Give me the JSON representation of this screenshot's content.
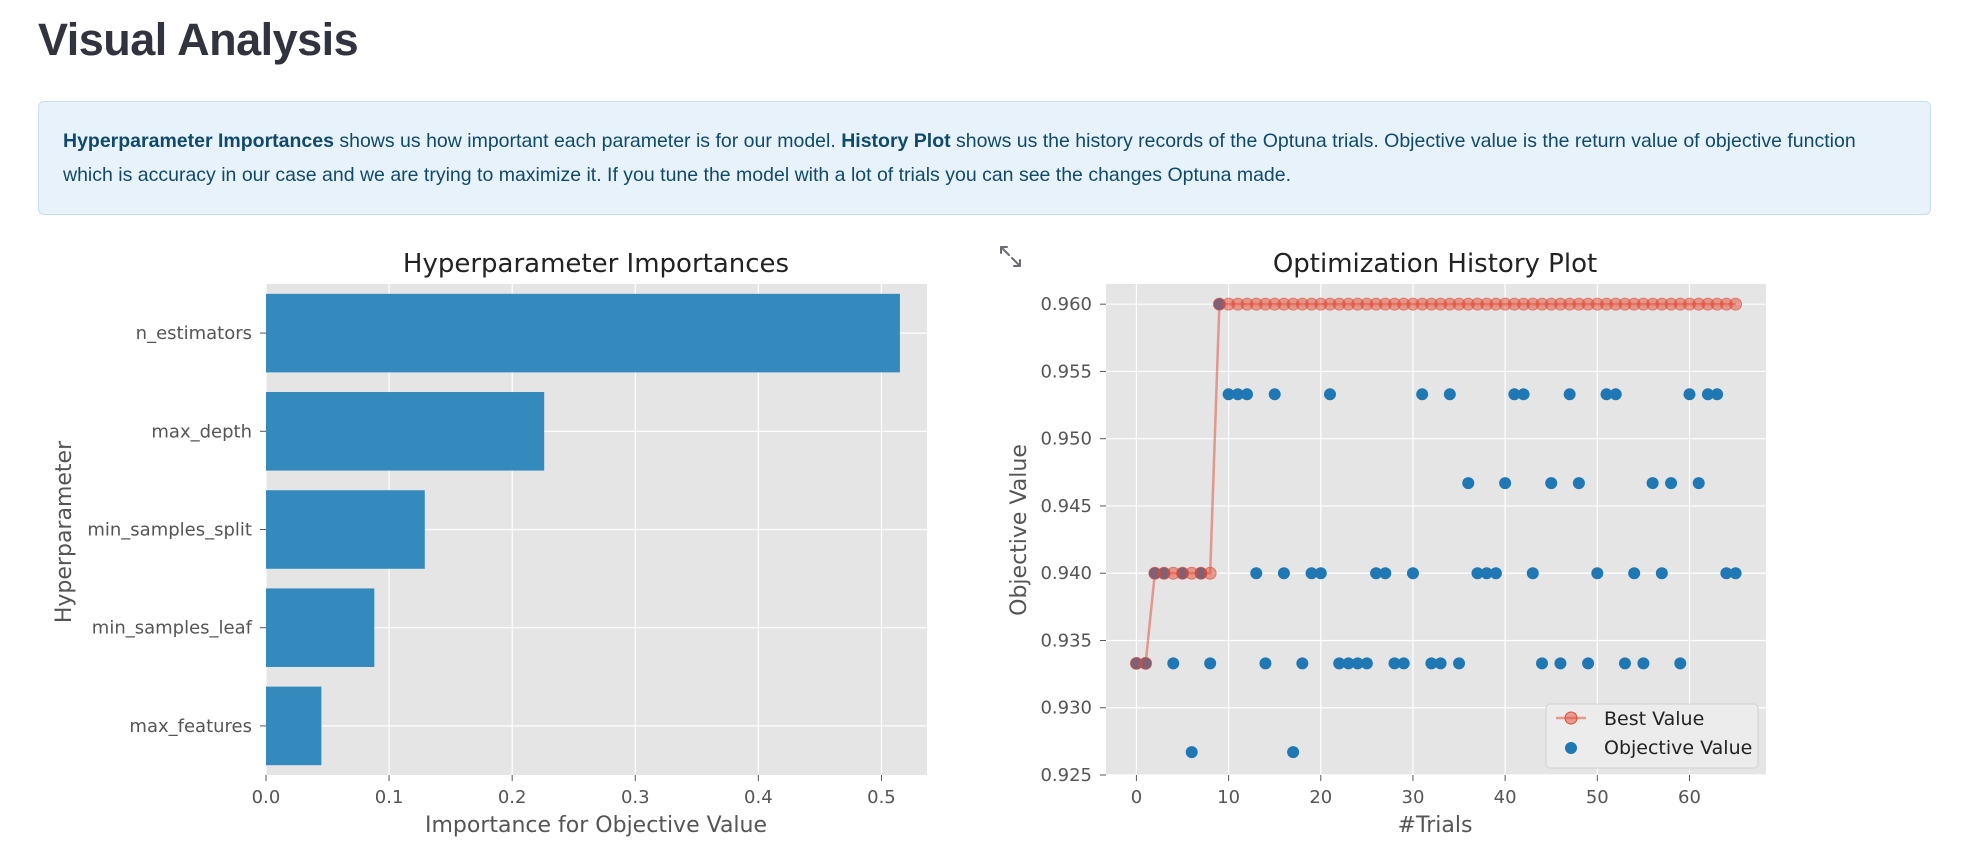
{
  "page": {
    "title": "Visual Analysis"
  },
  "info": {
    "term1": "Hyperparameter Importances",
    "text1": " shows us how important each parameter is for our model. ",
    "term2": "History Plot",
    "text2": " shows us the history records of the Optuna trials. Objective value is the return value of objective function which is accuracy in our case and we are trying to maximize it. If you tune the model with a lot of trials you can see the changes Optuna made."
  },
  "icons": {
    "expand": "expand-arrows-icon"
  },
  "colors": {
    "bar": "#348abd",
    "best_line": "#e24a33",
    "objective_dot": "#1f77b4",
    "plot_bg": "#e5e5e5",
    "info_bg": "#e8f2fb",
    "info_text": "#0f4a6c"
  },
  "chart_data": [
    {
      "type": "bar",
      "orientation": "horizontal",
      "title": "Hyperparameter Importances",
      "xlabel": "Importance for Objective Value",
      "ylabel": "Hyperparameter",
      "categories": [
        "n_estimators",
        "max_depth",
        "min_samples_split",
        "min_samples_leaf",
        "max_features"
      ],
      "values": [
        0.515,
        0.226,
        0.129,
        0.088,
        0.045
      ],
      "xlim": [
        0,
        0.537
      ],
      "xticks": [
        "0.0",
        "0.1",
        "0.2",
        "0.3",
        "0.4",
        "0.5"
      ],
      "grid": true
    },
    {
      "type": "scatter",
      "title": "Optimization History Plot",
      "xlabel": "#Trials",
      "ylabel": "Objective Value",
      "xlim": [
        -3.3,
        68.3
      ],
      "ylim": [
        0.925,
        0.9615
      ],
      "xticks": [
        "0",
        "10",
        "20",
        "30",
        "40",
        "50",
        "60"
      ],
      "yticks": [
        "0.925",
        "0.930",
        "0.935",
        "0.940",
        "0.945",
        "0.950",
        "0.955",
        "0.960"
      ],
      "legend": {
        "position": "bottom-right",
        "entries": [
          "Best Value",
          "Objective Value"
        ]
      },
      "grid": true,
      "series": [
        {
          "name": "Objective Value",
          "x": [
            0,
            1,
            2,
            3,
            4,
            5,
            6,
            7,
            8,
            9,
            10,
            11,
            12,
            13,
            14,
            15,
            16,
            17,
            18,
            19,
            20,
            21,
            22,
            23,
            24,
            25,
            26,
            27,
            28,
            29,
            30,
            31,
            32,
            33,
            34,
            35,
            36,
            37,
            38,
            39,
            40,
            41,
            42,
            43,
            44,
            45,
            46,
            47,
            48,
            49,
            50,
            51,
            52,
            53,
            54,
            55,
            56,
            57,
            58,
            59,
            60,
            61,
            62,
            63,
            64,
            65
          ],
          "y": [
            0.9333,
            0.9333,
            0.94,
            0.94,
            0.9333,
            0.94,
            0.9267,
            0.94,
            0.9333,
            0.96,
            0.9533,
            0.9533,
            0.9533,
            0.94,
            0.9333,
            0.9533,
            0.94,
            0.9267,
            0.9333,
            0.94,
            0.94,
            0.9533,
            0.9333,
            0.9333,
            0.9333,
            0.9333,
            0.94,
            0.94,
            0.9333,
            0.9333,
            0.94,
            0.9533,
            0.9333,
            0.9333,
            0.9533,
            0.9333,
            0.9467,
            0.94,
            0.94,
            0.94,
            0.9467,
            0.9533,
            0.9533,
            0.94,
            0.9333,
            0.9467,
            0.9333,
            0.9533,
            0.9467,
            0.9333,
            0.94,
            0.9533,
            0.9533,
            0.9333,
            0.94,
            0.9333,
            0.9467,
            0.94,
            0.9467,
            0.9333,
            0.9533,
            0.9467,
            0.9533,
            0.9533,
            0.94,
            0.94
          ]
        },
        {
          "name": "Best Value",
          "x": [
            0,
            1,
            2,
            3,
            4,
            5,
            6,
            7,
            8,
            9,
            10,
            11,
            12,
            13,
            14,
            15,
            16,
            17,
            18,
            19,
            20,
            21,
            22,
            23,
            24,
            25,
            26,
            27,
            28,
            29,
            30,
            31,
            32,
            33,
            34,
            35,
            36,
            37,
            38,
            39,
            40,
            41,
            42,
            43,
            44,
            45,
            46,
            47,
            48,
            49,
            50,
            51,
            52,
            53,
            54,
            55,
            56,
            57,
            58,
            59,
            60,
            61,
            62,
            63,
            64,
            65
          ],
          "y": [
            0.9333,
            0.9333,
            0.94,
            0.94,
            0.94,
            0.94,
            0.94,
            0.94,
            0.94,
            0.96,
            0.96,
            0.96,
            0.96,
            0.96,
            0.96,
            0.96,
            0.96,
            0.96,
            0.96,
            0.96,
            0.96,
            0.96,
            0.96,
            0.96,
            0.96,
            0.96,
            0.96,
            0.96,
            0.96,
            0.96,
            0.96,
            0.96,
            0.96,
            0.96,
            0.96,
            0.96,
            0.96,
            0.96,
            0.96,
            0.96,
            0.96,
            0.96,
            0.96,
            0.96,
            0.96,
            0.96,
            0.96,
            0.96,
            0.96,
            0.96,
            0.96,
            0.96,
            0.96,
            0.96,
            0.96,
            0.96,
            0.96,
            0.96,
            0.96,
            0.96,
            0.96,
            0.96,
            0.96,
            0.96,
            0.96,
            0.96
          ]
        }
      ]
    }
  ]
}
